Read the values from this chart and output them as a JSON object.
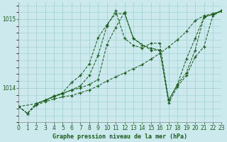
{
  "title": "Graphe pression niveau de la mer (hPa)",
  "background_color": "#cce9ee",
  "grid_color": "#9ecfcf",
  "line_color": "#1a5c1a",
  "xlim": [
    0,
    23
  ],
  "ylim": [
    1013.5,
    1015.25
  ],
  "yticks": [
    1014,
    1015
  ],
  "xticks": [
    0,
    1,
    2,
    3,
    4,
    5,
    6,
    7,
    8,
    9,
    10,
    11,
    12,
    13,
    14,
    15,
    16,
    17,
    18,
    19,
    20,
    21,
    22,
    23
  ],
  "series": [
    {
      "x": [
        0,
        1,
        2,
        3,
        4,
        5,
        6,
        7,
        8,
        9,
        10,
        11,
        12,
        13,
        14,
        15,
        16,
        17,
        18,
        19,
        20,
        21,
        22,
        23
      ],
      "y": [
        1013.73,
        1013.63,
        1013.75,
        1013.8,
        1013.84,
        1013.87,
        1013.89,
        1013.93,
        1013.97,
        1014.03,
        1014.1,
        1014.16,
        1014.22,
        1014.28,
        1014.34,
        1014.42,
        1014.5,
        1014.6,
        1014.7,
        1014.82,
        1014.98,
        1015.05,
        1015.08,
        1015.12
      ]
    },
    {
      "x": [
        0,
        1,
        2,
        3,
        4,
        5,
        6,
        7,
        8,
        9,
        10,
        11,
        12,
        13,
        14,
        15,
        16,
        17,
        18,
        19,
        20,
        21,
        22,
        23
      ],
      "y": [
        1013.73,
        1013.63,
        1013.77,
        1013.82,
        1013.88,
        1013.93,
        1014.08,
        1014.18,
        1014.35,
        1014.73,
        1014.92,
        1015.08,
        1015.08,
        1014.72,
        1014.62,
        1014.58,
        1014.55,
        1013.82,
        1014.05,
        1014.42,
        1014.72,
        1015.03,
        1015.07,
        1015.12
      ]
    },
    {
      "x": [
        0,
        2,
        3,
        4,
        5,
        6,
        7,
        8,
        9,
        10,
        11,
        12,
        13,
        14,
        15,
        16,
        17,
        18,
        19,
        20,
        21,
        22,
        23
      ],
      "y": [
        1013.73,
        1013.77,
        1013.82,
        1013.88,
        1013.92,
        1013.97,
        1014.03,
        1014.18,
        1014.47,
        1014.9,
        1015.12,
        1014.72,
        1014.62,
        1014.58,
        1014.65,
        1014.65,
        1013.82,
        1014.05,
        1014.22,
        1014.55,
        1015.03,
        1015.07,
        1015.12
      ]
    },
    {
      "x": [
        0,
        1,
        2,
        3,
        4,
        5,
        6,
        7,
        8,
        9,
        10,
        11,
        12,
        13,
        15,
        16,
        17,
        18,
        19,
        20,
        21,
        22,
        23
      ],
      "y": [
        1013.73,
        1013.63,
        1013.77,
        1013.82,
        1013.87,
        1013.92,
        1013.97,
        1014.0,
        1014.05,
        1014.12,
        1014.63,
        1014.88,
        1015.1,
        1014.72,
        1014.55,
        1014.55,
        1013.78,
        1014.02,
        1014.18,
        1014.45,
        1014.6,
        1015.05,
        1015.12
      ]
    }
  ]
}
